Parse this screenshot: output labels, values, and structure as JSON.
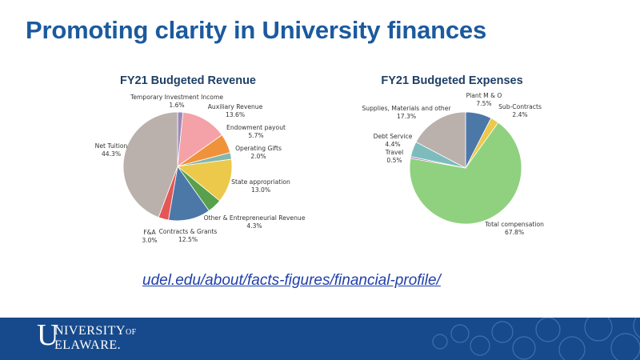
{
  "slide": {
    "title": "Promoting clarity in University finances",
    "link": "udel.edu/about/facts-figures/financial-profile/"
  },
  "logo": {
    "u": "U",
    "line1": "NIVERSITY",
    "of": "OF",
    "line2": "ELAWARE."
  },
  "colors": {
    "title": "#1b5a9e",
    "footer": "#174a8c"
  },
  "chart_data": [
    {
      "type": "pie",
      "title": "FY21 Budgeted Revenue",
      "slices": [
        {
          "label": "Temporary Investment Income",
          "value": 1.6,
          "display": "1.6%",
          "color": "#9c8ab8"
        },
        {
          "label": "Auxiliary Revenue",
          "value": 13.6,
          "display": "13.6%",
          "color": "#f5a1a8"
        },
        {
          "label": "Endowment payout",
          "value": 5.7,
          "display": "5.7%",
          "color": "#f0923a"
        },
        {
          "label": "Operating Gifts",
          "value": 2.0,
          "display": "2.0%",
          "color": "#83b7ad"
        },
        {
          "label": "State appropriation",
          "value": 13.0,
          "display": "13.0%",
          "color": "#ecc94b"
        },
        {
          "label": "Other & Entrepreneurial Revenue",
          "value": 4.3,
          "display": "4.3%",
          "color": "#58a04c"
        },
        {
          "label": "Contracts & Grants",
          "value": 12.5,
          "display": "12.5%",
          "color": "#4c78a8"
        },
        {
          "label": "F&A",
          "value": 3.0,
          "display": "3.0%",
          "color": "#e45756"
        },
        {
          "label": "Net Tuition",
          "value": 44.3,
          "display": "44.3%",
          "color": "#bab0ac"
        }
      ]
    },
    {
      "type": "pie",
      "title": "FY21 Budgeted Expenses",
      "slices": [
        {
          "label": "Plant M & O",
          "value": 7.5,
          "display": "7.5%",
          "color": "#4c78a8"
        },
        {
          "label": "Sub-Contracts",
          "value": 2.4,
          "display": "2.4%",
          "color": "#ecc94b"
        },
        {
          "label": "Total compensation",
          "value": 67.8,
          "display": "67.8%",
          "color": "#8fd17f"
        },
        {
          "label": "Travel",
          "value": 0.5,
          "display": "0.5%",
          "color": "#b27db5"
        },
        {
          "label": "Debt Service",
          "value": 4.4,
          "display": "4.4%",
          "color": "#7cbcbc"
        },
        {
          "label": "Supplies, Materials and other",
          "value": 17.3,
          "display": "17.3%",
          "color": "#bab0ac"
        }
      ]
    }
  ]
}
